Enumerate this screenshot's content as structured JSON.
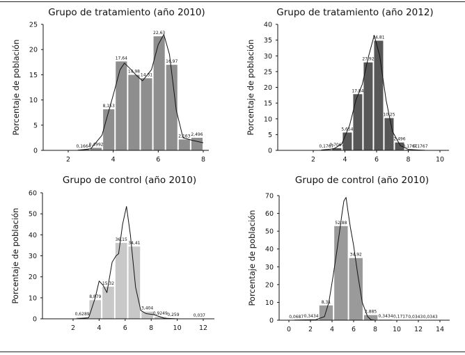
{
  "chart_data": [
    {
      "type": "bar",
      "title": "Grupo de tratamiento (año 2010)",
      "ylabel": "Porcentaje de población",
      "xlabel": "",
      "xlim": [
        2,
        8
      ],
      "ylim": [
        0,
        25
      ],
      "xticks": [
        2,
        4,
        6,
        8
      ],
      "yticks": [
        0,
        5,
        10,
        15,
        20,
        25
      ],
      "bar_color": "#8e8e8e",
      "grid": false,
      "bins": [
        {
          "x0": 2.4,
          "x1": 2.96,
          "value": 0.1664,
          "label": "0,1664"
        },
        {
          "x0": 2.96,
          "x1": 3.52,
          "value": 0.4992,
          "label": "0,4992"
        },
        {
          "x0": 3.52,
          "x1": 4.08,
          "value": 8.153,
          "label": "8,153"
        },
        {
          "x0": 4.08,
          "x1": 4.64,
          "value": 17.64,
          "label": "17,64"
        },
        {
          "x0": 4.64,
          "x1": 5.2,
          "value": 14.98,
          "label": "14,98"
        },
        {
          "x0": 5.2,
          "x1": 5.76,
          "value": 14.31,
          "label": "14,31"
        },
        {
          "x0": 5.76,
          "x1": 6.32,
          "value": 22.63,
          "label": "22,63"
        },
        {
          "x0": 6.32,
          "x1": 6.88,
          "value": 16.97,
          "label": "16,97"
        },
        {
          "x0": 6.88,
          "x1": 7.44,
          "value": 2.163,
          "label": "2,163"
        },
        {
          "x0": 7.44,
          "x1": 8.0,
          "value": 2.496,
          "label": "2,496"
        }
      ],
      "density": [
        [
          2.4,
          0
        ],
        [
          3.0,
          0.3
        ],
        [
          3.5,
          3
        ],
        [
          4.0,
          11
        ],
        [
          4.3,
          16
        ],
        [
          4.5,
          17.3
        ],
        [
          4.8,
          16
        ],
        [
          5.0,
          15
        ],
        [
          5.3,
          13.8
        ],
        [
          5.7,
          16
        ],
        [
          6.0,
          21
        ],
        [
          6.25,
          23
        ],
        [
          6.5,
          19
        ],
        [
          6.8,
          8
        ],
        [
          7.1,
          2.5
        ],
        [
          7.5,
          2
        ],
        [
          8,
          1.5
        ]
      ]
    },
    {
      "type": "bar",
      "title": "Grupo de tratamiento (año 2012)",
      "ylabel": "Porcentaje de población",
      "xlabel": "",
      "xlim": [
        0,
        10
      ],
      "ylim": [
        0,
        40
      ],
      "xticks": [
        2,
        4,
        6,
        8,
        10
      ],
      "yticks": [
        0,
        5,
        10,
        15,
        20,
        25,
        30,
        35,
        40
      ],
      "bar_color": "#575757",
      "grid": false,
      "bins": [
        {
          "x0": 2.5,
          "x1": 3.16,
          "value": 0.1767,
          "label": "0,1767"
        },
        {
          "x0": 3.16,
          "x1": 3.82,
          "value": 0.7067,
          "label": "0,7067"
        },
        {
          "x0": 3.82,
          "x1": 4.48,
          "value": 5.654,
          "label": "5,654"
        },
        {
          "x0": 4.48,
          "x1": 5.14,
          "value": 17.84,
          "label": "17,84"
        },
        {
          "x0": 5.14,
          "x1": 5.8,
          "value": 27.92,
          "label": "27,92"
        },
        {
          "x0": 5.8,
          "x1": 6.46,
          "value": 34.81,
          "label": "34,81"
        },
        {
          "x0": 6.46,
          "x1": 7.12,
          "value": 10.25,
          "label": "10,25"
        },
        {
          "x0": 7.12,
          "x1": 7.78,
          "value": 2.496,
          "label": "2,496"
        },
        {
          "x0": 7.78,
          "x1": 8.44,
          "value": 0.1767,
          "label": "0,1767"
        },
        {
          "x0": 8.44,
          "x1": 9.1,
          "value": 0.1767,
          "label": "0,1767"
        }
      ],
      "density": [
        [
          2.5,
          0.1
        ],
        [
          3.3,
          0.5
        ],
        [
          3.8,
          2
        ],
        [
          4.3,
          8
        ],
        [
          4.7,
          16
        ],
        [
          5.1,
          21
        ],
        [
          5.5,
          30
        ],
        [
          5.85,
          36.5
        ],
        [
          6.2,
          30
        ],
        [
          6.6,
          16
        ],
        [
          7.0,
          6
        ],
        [
          7.5,
          1.5
        ],
        [
          8,
          0.3
        ],
        [
          9,
          0
        ]
      ]
    },
    {
      "type": "bar",
      "title": "Grupo de control (año 2010)",
      "ylabel": "Porcentaje de población",
      "xlabel": "",
      "xlim": [
        0,
        12
      ],
      "ylim": [
        0,
        60
      ],
      "xticks": [
        2,
        4,
        6,
        8,
        10,
        12
      ],
      "yticks": [
        0,
        10,
        20,
        30,
        40,
        50,
        60
      ],
      "bar_color": "#c8c8c8",
      "grid": false,
      "bins": [
        {
          "x0": 2.2,
          "x1": 3.2,
          "value": 0.6289,
          "label": "0,6289"
        },
        {
          "x0": 3.2,
          "x1": 4.2,
          "value": 8.879,
          "label": "8,879"
        },
        {
          "x0": 4.2,
          "x1": 5.2,
          "value": 15.32,
          "label": "15,32"
        },
        {
          "x0": 5.2,
          "x1": 6.2,
          "value": 36.15,
          "label": "36,15"
        },
        {
          "x0": 6.2,
          "x1": 7.2,
          "value": 34.41,
          "label": "34,41"
        },
        {
          "x0": 7.2,
          "x1": 8.2,
          "value": 3.404,
          "label": "3,404"
        },
        {
          "x0": 8.2,
          "x1": 9.2,
          "value": 0.9249,
          "label": "0,9249"
        },
        {
          "x0": 9.2,
          "x1": 10.2,
          "value": 0.259,
          "label": "0,259"
        },
        {
          "x0": 11.2,
          "x1": 12.2,
          "value": 0.037,
          "label": "0,037"
        }
      ],
      "density": [
        [
          2.2,
          0
        ],
        [
          3.2,
          0.5
        ],
        [
          3.7,
          10
        ],
        [
          4.0,
          18
        ],
        [
          4.3,
          16
        ],
        [
          4.6,
          12.5
        ],
        [
          5.0,
          27
        ],
        [
          5.3,
          30
        ],
        [
          5.5,
          31
        ],
        [
          5.8,
          45
        ],
        [
          6.1,
          53.5
        ],
        [
          6.4,
          40
        ],
        [
          6.8,
          15
        ],
        [
          7.2,
          4
        ],
        [
          7.6,
          2.5
        ],
        [
          8.2,
          2
        ],
        [
          9,
          0.3
        ],
        [
          10,
          0
        ]
      ]
    },
    {
      "type": "bar",
      "title": "Grupo de control (año 2010)",
      "ylabel": "Porcentaje de población",
      "xlabel": "",
      "xlim": [
        0,
        14
      ],
      "ylim": [
        0,
        70
      ],
      "xticks": [
        0,
        2,
        4,
        6,
        8,
        10,
        12,
        14
      ],
      "yticks": [
        0,
        10,
        20,
        30,
        40,
        50,
        60,
        70
      ],
      "bar_color": "#9a9a9a",
      "grid": false,
      "bins": [
        {
          "x0": 0.0,
          "x1": 1.38,
          "value": 0.0687,
          "label": "0,0687"
        },
        {
          "x0": 1.38,
          "x1": 2.76,
          "value": 0.3434,
          "label": "0,3434"
        },
        {
          "x0": 2.76,
          "x1": 4.14,
          "value": 8.31,
          "label": "8,31"
        },
        {
          "x0": 4.14,
          "x1": 5.52,
          "value": 52.88,
          "label": "52,88"
        },
        {
          "x0": 5.52,
          "x1": 6.9,
          "value": 34.92,
          "label": "34,92"
        },
        {
          "x0": 6.9,
          "x1": 8.28,
          "value": 2.885,
          "label": "2,885"
        },
        {
          "x0": 8.28,
          "x1": 9.66,
          "value": 0.3434,
          "label": "0,3434"
        },
        {
          "x0": 9.66,
          "x1": 11.04,
          "value": 0.1717,
          "label": "0,1717"
        },
        {
          "x0": 11.04,
          "x1": 12.42,
          "value": 0.0343,
          "label": "0,0343"
        },
        {
          "x0": 12.42,
          "x1": 13.8,
          "value": 0.0343,
          "label": "0,0343"
        }
      ],
      "density": [
        [
          0.5,
          0.1
        ],
        [
          2.5,
          0.3
        ],
        [
          3.3,
          2
        ],
        [
          3.7,
          10
        ],
        [
          4.1,
          25
        ],
        [
          4.4,
          37
        ],
        [
          4.7,
          50
        ],
        [
          4.9,
          59
        ],
        [
          5.1,
          67
        ],
        [
          5.3,
          69
        ],
        [
          5.5,
          60
        ],
        [
          5.7,
          52
        ],
        [
          6.0,
          42
        ],
        [
          6.4,
          25
        ],
        [
          6.8,
          10
        ],
        [
          7.3,
          2
        ],
        [
          7.6,
          0.3
        ],
        [
          8,
          0
        ]
      ]
    }
  ]
}
